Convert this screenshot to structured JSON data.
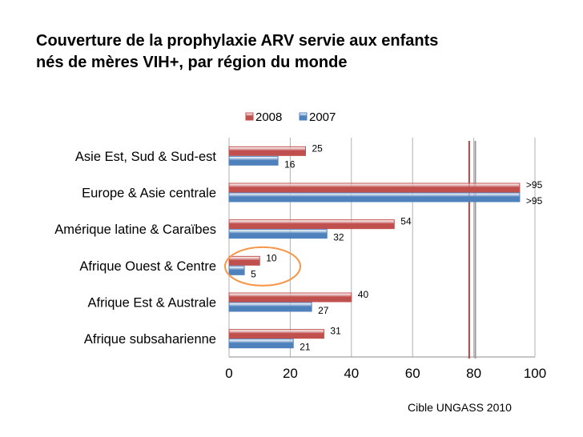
{
  "title": {
    "line1": "Couverture de la prophylaxie ARV servie aux enfants",
    "line2": "nés de mères VIH+, par région du monde"
  },
  "footnote": "Cible UNGASS 2010",
  "chart_data": {
    "type": "bar",
    "orientation": "horizontal",
    "categories": [
      "Asie Est, Sud & Sud-est",
      "Europe & Asie centrale",
      "Amérique latine & Caraïbes",
      "Afrique Ouest & Centre",
      "Afrique Est & Australe",
      "Afrique subsaharienne"
    ],
    "series": [
      {
        "name": "2008",
        "color": "#c0504d",
        "values": [
          25,
          95,
          54,
          10,
          40,
          31
        ],
        "labels": [
          "25",
          ">95",
          "54",
          "10",
          "40",
          "31"
        ]
      },
      {
        "name": "2007",
        "color": "#4f81bd",
        "values": [
          16,
          95,
          32,
          5,
          27,
          21
        ],
        "labels": [
          "16",
          ">95",
          "32",
          "5",
          "27",
          "21"
        ]
      }
    ],
    "xlim": [
      0,
      100
    ],
    "xticks": [
      "0",
      "20",
      "40",
      "60",
      "80",
      "100"
    ],
    "grid": true,
    "legend_position": "top",
    "target_lines": [
      {
        "value": 78.5,
        "color": "#b0463f"
      },
      {
        "value": 80.5,
        "color": "#999999"
      }
    ],
    "highlight": {
      "category": "Afrique Ouest & Centre",
      "shape": "ellipse",
      "color": "#f79646"
    }
  }
}
